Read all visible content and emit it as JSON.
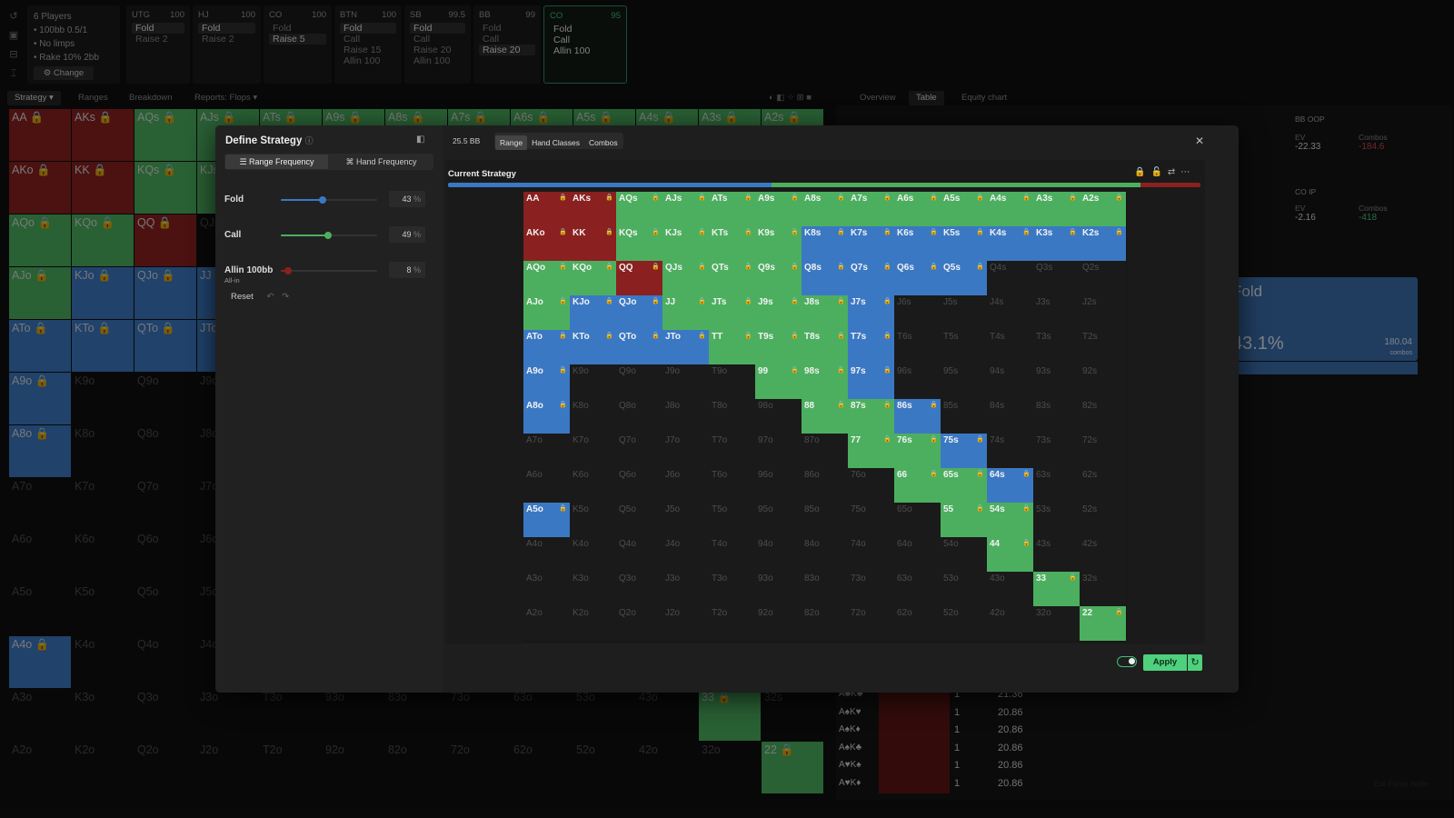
{
  "colors": {
    "raise": "#8a2020",
    "call": "#4caf5f",
    "fold": "#3b78c4",
    "empty": "#1a1a1a"
  },
  "icons": [
    "undo-icon",
    "save-icon",
    "table-icon",
    "strategy-icon"
  ],
  "players": {
    "count": "6 Players",
    "stack": "• 100bb 0.5/1",
    "limps": "• No limps",
    "rake": "• Rake 10% 2bb",
    "change": "⚙ Change"
  },
  "positions": [
    {
      "name": "UTG",
      "stack": "100",
      "lines": [
        "Fold",
        "Raise 2"
      ],
      "sel": 0
    },
    {
      "name": "HJ",
      "stack": "100",
      "lines": [
        "Fold",
        "Raise 2"
      ],
      "sel": 0
    },
    {
      "name": "CO",
      "stack": "100",
      "lines": [
        "Fold",
        "Raise 5"
      ],
      "sel": 1
    },
    {
      "name": "BTN",
      "stack": "100",
      "lines": [
        "Fold",
        "Call",
        "Raise 15",
        "Allin 100"
      ],
      "sel": 0
    },
    {
      "name": "SB",
      "stack": "99.5",
      "lines": [
        "Fold",
        "Call",
        "Raise 20",
        "Allin 100"
      ],
      "sel": 0
    },
    {
      "name": "BB",
      "stack": "99",
      "lines": [
        "Fold",
        "Call",
        "Raise 20"
      ],
      "sel": 2
    },
    {
      "name": "CO",
      "stack": "95",
      "lines": [
        "Fold",
        "Call",
        "Allin 100"
      ],
      "sel": -1
    }
  ],
  "tabs": {
    "strategy": "Strategy",
    "ranges": "Ranges",
    "breakdown": "Breakdown",
    "reports": "Reports: Flops",
    "overview": "Overview",
    "table": "Table",
    "equity": "Equity chart"
  },
  "rightpanel": {
    "bb_label": "BB",
    "bb_pos": "OOP",
    "bb_ev_label": "EV",
    "bb_ev": "-22.33",
    "bb_combos_label": "Combos",
    "bb_combos": "-184.6",
    "co_label": "CO",
    "co_pos": "IP",
    "co_ev_label": "EV",
    "co_ev": "-2.16",
    "co_combos_label": "Combos",
    "co_combos": "-418",
    "fold_label": "Fold",
    "fold_pct": "43.1%",
    "fold_combos": "180.04",
    "fold_combos_label": "combos",
    "focus": "Exit Focus mode"
  },
  "combo_rows": [
    {
      "cards": "A♣K♣",
      "count": "1",
      "value": "21.36"
    },
    {
      "cards": "A♠K♥",
      "count": "1",
      "value": "20.86"
    },
    {
      "cards": "A♠K♦",
      "count": "1",
      "value": "20.86"
    },
    {
      "cards": "A♠K♣",
      "count": "1",
      "value": "20.86"
    },
    {
      "cards": "A♥K♠",
      "count": "1",
      "value": "20.86"
    },
    {
      "cards": "A♥K♦",
      "count": "1",
      "value": "20.86"
    }
  ],
  "modal": {
    "title": "Define Strategy",
    "mode_range": "Range Frequency",
    "mode_hand": "Hand Frequency",
    "actions": [
      {
        "name": "Fold",
        "sub": "",
        "value": "43",
        "unit": "%",
        "pct": 43,
        "color": "#3b78c4"
      },
      {
        "name": "Call",
        "sub": "",
        "value": "49",
        "unit": "%",
        "pct": 49,
        "color": "#4caf5f"
      },
      {
        "name": "Allin 100bb",
        "sub": "All-in",
        "value": "8",
        "unit": "%",
        "pct": 8,
        "color": "#8a2020"
      }
    ],
    "reset": "Reset",
    "bb": "25.5 BB",
    "view_range": "Range",
    "view_classes": "Hand Classes",
    "view_combos": "Combos",
    "current_strategy": "Current Strategy",
    "apply": "Apply",
    "strategy_bar": [
      {
        "action": "fold",
        "share": 43
      },
      {
        "action": "call",
        "share": 49
      },
      {
        "action": "raise",
        "share": 8
      }
    ]
  },
  "ranks": [
    "A",
    "K",
    "Q",
    "J",
    "T",
    "9",
    "8",
    "7",
    "6",
    "5",
    "4",
    "3",
    "2"
  ],
  "matrix": [
    "RRCCCCCCCCCCC",
    "RRCCCCFFFFFFF",
    "CCRCCCFFFF...",
    "CFFCCCCF.....",
    "FFFFCCCF.....",
    "F....CCF.....",
    "F.....CCF....",
    ".......CCF...",
    "........CCF..",
    "F........CC..",
    "..........C..",
    "...........C.",
    "............C"
  ],
  "bg_matrix": [
    "RRCCCCCCCCCCC",
    "RRCC.........",
    "CCR..........",
    "CFFF.........",
    "FFFF.........",
    "F............",
    "F............",
    ".............",
    ".............",
    ".............",
    "F............",
    "...........C.",
    "............C"
  ]
}
